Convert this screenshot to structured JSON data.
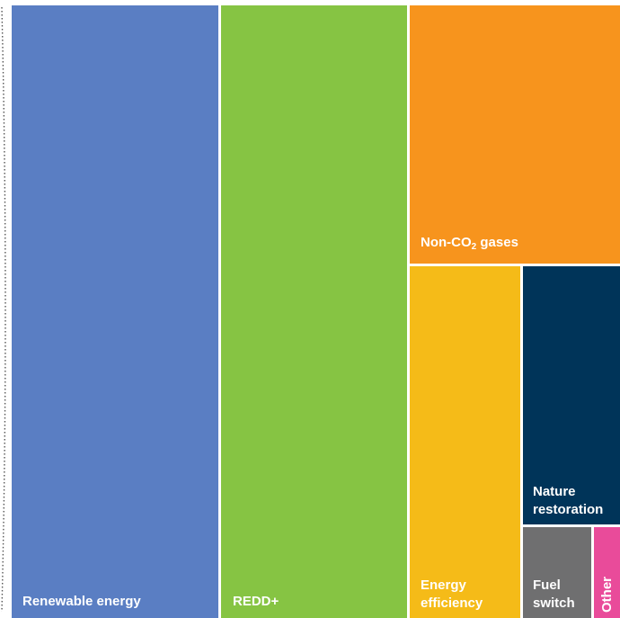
{
  "chart_data": {
    "type": "treemap",
    "items": [
      {
        "label": "Renewable energy",
        "color": "#5A7EC3"
      },
      {
        "label": "REDD+",
        "color": "#86C443"
      },
      {
        "label_main": "Non-CO",
        "label_sub": "2",
        "label_rest": " gases",
        "color": "#F7941D"
      },
      {
        "label_line1": "Energy",
        "label_line2": "efficiency",
        "color": "#F5BB18"
      },
      {
        "label_line1": "Nature",
        "label_line2": "restoration",
        "color": "#003459"
      },
      {
        "label_line1": "Fuel",
        "label_line2": "switch",
        "color": "#6F6F70"
      },
      {
        "label": "Other",
        "color": "#E94B9A"
      }
    ]
  }
}
